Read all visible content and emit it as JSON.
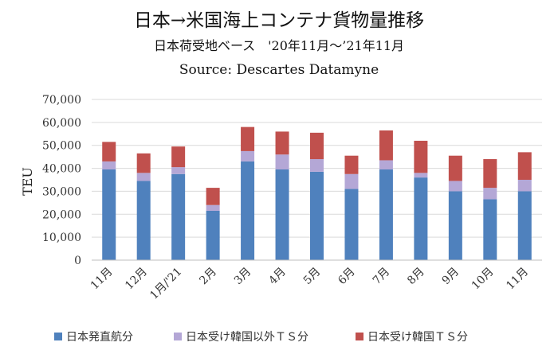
{
  "chart_data": {
    "type": "bar",
    "stacked": true,
    "title": "日本→米国海上コンテナ貨物量推移",
    "subtitle": "日本荷受地ベース　'20年11月～’21年11月",
    "source": "Source: Descartes Datamyne",
    "ylabel": "TEU",
    "ylim": [
      0,
      70000
    ],
    "yticks": [
      "0",
      "10,000",
      "20,000",
      "30,000",
      "40,000",
      "50,000",
      "60,000",
      "70,000"
    ],
    "grid": true,
    "legend_position": "bottom",
    "categories": [
      "11月",
      "12月",
      "1月/'21",
      "2月",
      "3月",
      "4月",
      "5月",
      "6月",
      "7月",
      "8月",
      "9月",
      "10月",
      "11月"
    ],
    "series": [
      {
        "name": "日本発直航分",
        "color": "#4f81bd",
        "values": [
          39500,
          34500,
          37500,
          21500,
          43000,
          39500,
          38500,
          31000,
          39500,
          36000,
          30000,
          26500,
          30000
        ]
      },
      {
        "name": "日本受け韓国以外ＴＳ分",
        "color": "#b4a7d6",
        "values": [
          3500,
          3500,
          3000,
          2500,
          4500,
          6500,
          5500,
          6500,
          4000,
          2000,
          4500,
          5000,
          5000
        ]
      },
      {
        "name": "日本受け韓国ＴＳ分",
        "color": "#c0504d",
        "values": [
          8500,
          8500,
          9000,
          7500,
          10500,
          10000,
          11500,
          8000,
          13000,
          14000,
          11000,
          12500,
          12000
        ]
      }
    ]
  }
}
